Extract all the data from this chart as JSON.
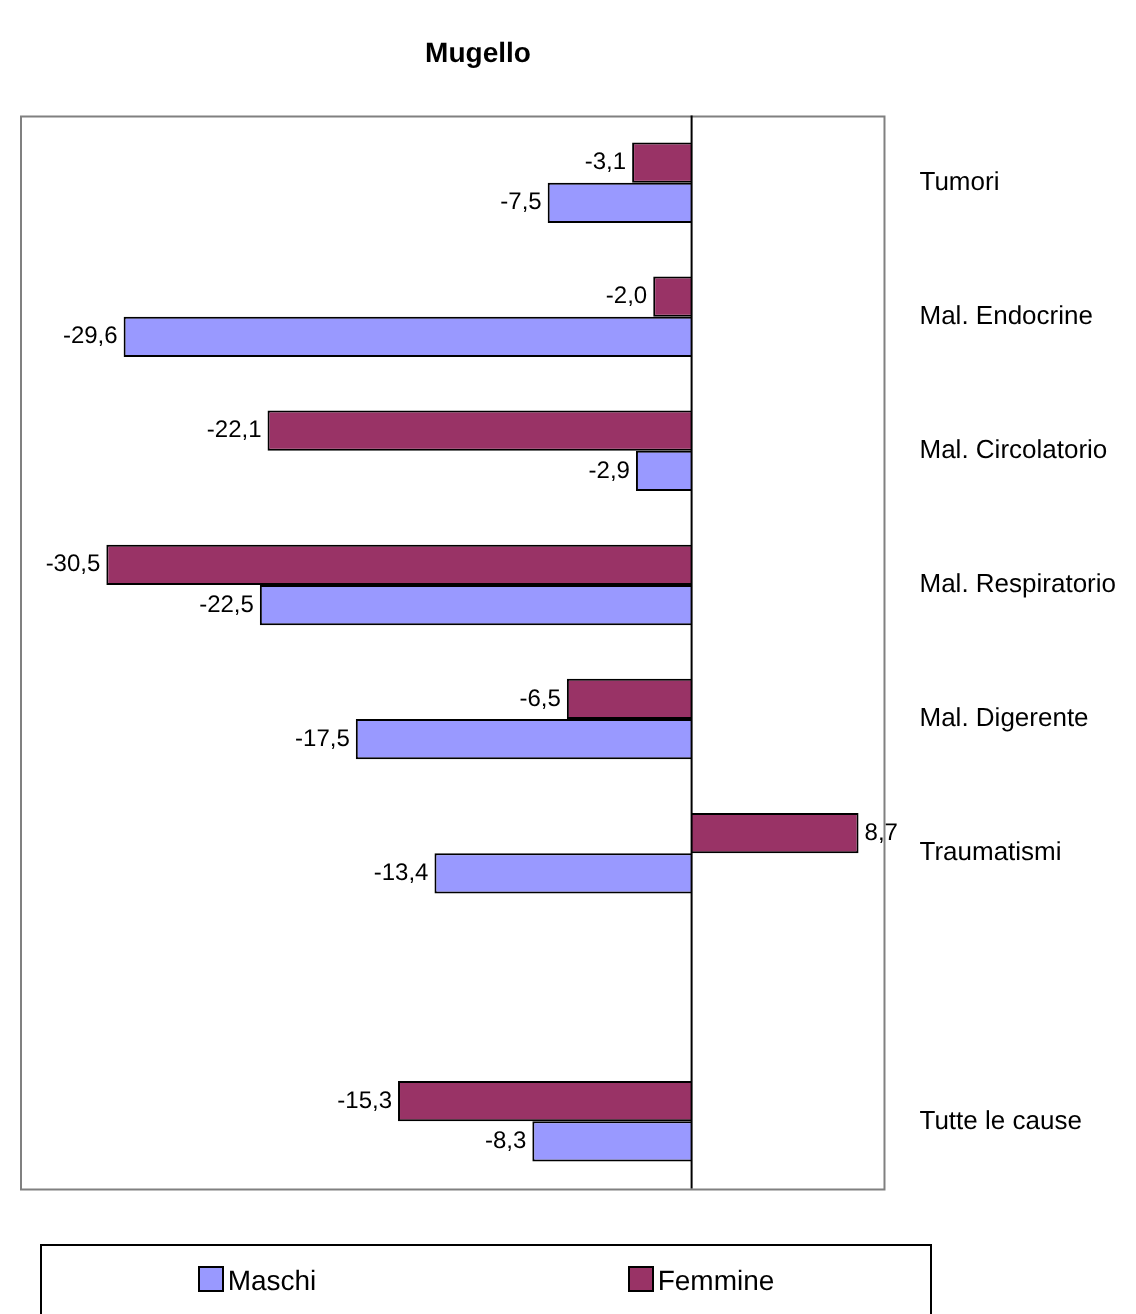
{
  "chart_data": {
    "type": "bar",
    "orientation": "horizontal",
    "title": "Mugello",
    "categories": [
      "Tumori",
      "Mal. Endocrine",
      "Mal. Circolatorio",
      "Mal. Respiratorio",
      "Mal. Digerente",
      "Traumatismi",
      null,
      "Tutte le cause"
    ],
    "series": [
      {
        "name": "Maschi",
        "color": "#9999ff",
        "values": [
          -7.5,
          -29.6,
          -2.9,
          -22.5,
          -17.5,
          -13.4,
          null,
          -8.3
        ],
        "value_labels": [
          "-7,5",
          "-29,6",
          "-2,9",
          "-22,5",
          "-17,5",
          "-13,4",
          null,
          "-8,3"
        ]
      },
      {
        "name": "Femmine",
        "color": "#993366",
        "values": [
          -3.1,
          -2.0,
          -22.1,
          -30.5,
          -6.5,
          8.7,
          null,
          -15.3
        ],
        "value_labels": [
          "-3,1",
          "-2,0",
          "-22,1",
          "-30,5",
          "-6,5",
          "8,7",
          null,
          "-15,3"
        ]
      }
    ],
    "legend": "bottom",
    "grid": false
  }
}
